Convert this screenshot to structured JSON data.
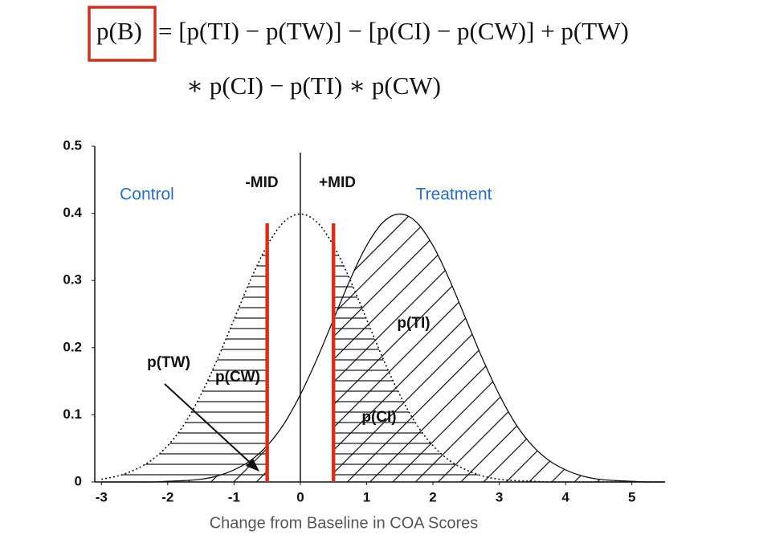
{
  "formula": {
    "lhs": "p(B)",
    "line1": "= [p(TI) − p(TW)] − [p(CI) − p(CW)] + p(TW)",
    "line2": "∗ p(CI) − p(TI) ∗ p(CW)"
  },
  "chart_data": {
    "type": "area",
    "xlabel": "Change from Baseline in COA Scores",
    "x": [
      -3,
      -2.75,
      -2.5,
      -2.25,
      -2,
      -1.75,
      -1.5,
      -1.25,
      -1,
      -0.75,
      -0.5,
      -0.25,
      0,
      0.25,
      0.5,
      0.75,
      1,
      1.25,
      1.5,
      1.75,
      2,
      2.25,
      2.5,
      2.75,
      3,
      3.25,
      3.5,
      3.75,
      4,
      4.25,
      4.5,
      4.75,
      5,
      5.25,
      5.5
    ],
    "series": [
      {
        "name": "Control",
        "color": "#2a6ebb",
        "style": "dotted",
        "values": [
          0.004,
          0.009,
          0.018,
          0.032,
          0.054,
          0.086,
          0.13,
          0.183,
          0.242,
          0.301,
          0.352,
          0.387,
          0.399,
          0.387,
          0.352,
          0.301,
          0.242,
          0.183,
          0.13,
          0.086,
          0.054,
          0.032,
          0.018,
          0.009,
          0.004,
          0.002,
          0.001,
          0,
          0,
          0,
          0,
          0,
          0,
          0,
          0
        ]
      },
      {
        "name": "Treatment",
        "color": "#2a6ebb",
        "style": "solid",
        "values": [
          0,
          0,
          0,
          0,
          0.001,
          0.002,
          0.004,
          0.009,
          0.018,
          0.032,
          0.054,
          0.086,
          0.13,
          0.183,
          0.242,
          0.301,
          0.352,
          0.387,
          0.399,
          0.387,
          0.352,
          0.301,
          0.242,
          0.183,
          0.13,
          0.086,
          0.054,
          0.032,
          0.018,
          0.009,
          0.004,
          0.002,
          0.001,
          0,
          0
        ]
      }
    ],
    "xlim": [
      -3.1,
      5.5
    ],
    "ylim": [
      0,
      0.5
    ],
    "xticks": [
      -3,
      -2,
      -1,
      0,
      1,
      2,
      3,
      4,
      5
    ],
    "yticks": [
      0,
      0.1,
      0.2,
      0.3,
      0.4,
      0.5
    ],
    "mid_lines": [
      -0.5,
      0.5
    ],
    "mid_labels": [
      "-MID",
      "+MID"
    ],
    "mid_color": "#d9301e",
    "region_labels": [
      "p(TI)",
      "p(TW)",
      "p(CW)",
      "p(CI)"
    ]
  }
}
